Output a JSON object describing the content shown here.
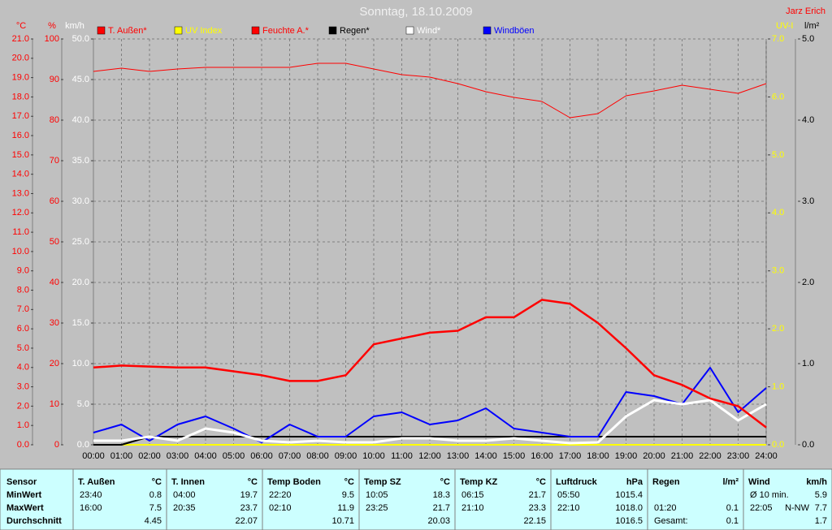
{
  "chart_data": {
    "type": "line",
    "title": "Sonntag, 18.10.2009",
    "author": "Jarz Erich",
    "grid": true,
    "x": [
      0,
      1,
      2,
      3,
      4,
      5,
      6,
      7,
      8,
      9,
      10,
      11,
      12,
      13,
      14,
      15,
      16,
      17,
      18,
      19,
      20,
      21,
      22,
      23,
      24
    ],
    "xlim": [
      0,
      24
    ],
    "xticks": [
      {
        "value": 0,
        "label": "00:00"
      },
      {
        "value": 1,
        "label": "01:00"
      },
      {
        "value": 2,
        "label": "02:00"
      },
      {
        "value": 3,
        "label": "03:00"
      },
      {
        "value": 4,
        "label": "04:00"
      },
      {
        "value": 5,
        "label": "05:00"
      },
      {
        "value": 6,
        "label": "06:00"
      },
      {
        "value": 7,
        "label": "07:00"
      },
      {
        "value": 8,
        "label": "08:00"
      },
      {
        "value": 9,
        "label": "09:00"
      },
      {
        "value": 10,
        "label": "10:00"
      },
      {
        "value": 11,
        "label": "11:00"
      },
      {
        "value": 12,
        "label": "12:00"
      },
      {
        "value": 13,
        "label": "13:00"
      },
      {
        "value": 14,
        "label": "14:00"
      },
      {
        "value": 15,
        "label": "15:00"
      },
      {
        "value": 16,
        "label": "16:00"
      },
      {
        "value": 17,
        "label": "17:00"
      },
      {
        "value": 18,
        "label": "18:00"
      },
      {
        "value": 19,
        "label": "19:00"
      },
      {
        "value": 20,
        "label": "20:00"
      },
      {
        "value": 21,
        "label": "21:00"
      },
      {
        "value": 22,
        "label": "22:00"
      },
      {
        "value": 23,
        "label": "23:00"
      },
      {
        "value": 24,
        "label": "24:00"
      }
    ],
    "axes": [
      {
        "label": "°C",
        "color": "#ff0000",
        "ylim": [
          0,
          21
        ],
        "yticks": [
          {
            "value": 0,
            "label": "0.0"
          },
          {
            "value": 1,
            "label": "1.0"
          },
          {
            "value": 2,
            "label": "2.0"
          },
          {
            "value": 3,
            "label": "3.0"
          },
          {
            "value": 4,
            "label": "4.0"
          },
          {
            "value": 5,
            "label": "5.0"
          },
          {
            "value": 6,
            "label": "6.0"
          },
          {
            "value": 7,
            "label": "7.0"
          },
          {
            "value": 8,
            "label": "8.0"
          },
          {
            "value": 9,
            "label": "9.0"
          },
          {
            "value": 10,
            "label": "10.0"
          },
          {
            "value": 11,
            "label": "11.0"
          },
          {
            "value": 12,
            "label": "12.0"
          },
          {
            "value": 13,
            "label": "13.0"
          },
          {
            "value": 14,
            "label": "14.0"
          },
          {
            "value": 15,
            "label": "15.0"
          },
          {
            "value": 16,
            "label": "16.0"
          },
          {
            "value": 17,
            "label": "17.0"
          },
          {
            "value": 18,
            "label": "18.0"
          },
          {
            "value": 19,
            "label": "19.0"
          },
          {
            "value": 20,
            "label": "20.0"
          },
          {
            "value": 21,
            "label": "21.0"
          }
        ]
      },
      {
        "label": "%",
        "color": "#ff0000",
        "ylim": [
          0,
          100
        ],
        "yticks": [
          0,
          10,
          20,
          30,
          40,
          50,
          60,
          70,
          80,
          90,
          100
        ]
      },
      {
        "label": "km/h",
        "color": "#ffffff",
        "ylim": [
          0,
          50
        ],
        "yticks": [
          {
            "value": 0,
            "label": "0.0"
          },
          {
            "value": 5,
            "label": "5.0"
          },
          {
            "value": 10,
            "label": "10.0"
          },
          {
            "value": 15,
            "label": "15.0"
          },
          {
            "value": 20,
            "label": "20.0"
          },
          {
            "value": 25,
            "label": "25.0"
          },
          {
            "value": 30,
            "label": "30.0"
          },
          {
            "value": 35,
            "label": "35.0"
          },
          {
            "value": 40,
            "label": "40.0"
          },
          {
            "value": 45,
            "label": "45.0"
          },
          {
            "value": 50,
            "label": "50.0"
          }
        ]
      },
      {
        "label": "UV-I",
        "color": "#ffff00",
        "ylim": [
          0,
          7
        ],
        "yticks": [
          {
            "value": 0,
            "label": "0.0"
          },
          {
            "value": 1,
            "label": "1.0"
          },
          {
            "value": 2,
            "label": "2.0"
          },
          {
            "value": 3,
            "label": "3.0"
          },
          {
            "value": 4,
            "label": "4.0"
          },
          {
            "value": 5,
            "label": "5.0"
          },
          {
            "value": 6,
            "label": "6.0"
          },
          {
            "value": 7,
            "label": "7.0"
          }
        ]
      },
      {
        "label": "l/m²",
        "color": "#000000",
        "ylim": [
          0,
          5
        ],
        "yticks": [
          {
            "value": 0,
            "label": "0.0"
          },
          {
            "value": 1,
            "label": "1.0"
          },
          {
            "value": 2,
            "label": "2.0"
          },
          {
            "value": 3,
            "label": "3.0"
          },
          {
            "value": 4,
            "label": "4.0"
          },
          {
            "value": 5,
            "label": "5.0"
          }
        ]
      }
    ],
    "series": [
      {
        "name": "T. Außen*",
        "color": "#ff0000",
        "axis": 0,
        "values": [
          4.0,
          4.1,
          4.05,
          4.0,
          4.0,
          3.8,
          3.6,
          3.3,
          3.3,
          3.6,
          5.2,
          5.5,
          5.8,
          5.9,
          6.6,
          6.6,
          7.5,
          7.3,
          6.3,
          5.0,
          3.6,
          3.1,
          2.4,
          2.0,
          0.9
        ]
      },
      {
        "name": "UV Index",
        "color": "#ffff00",
        "axis": 3,
        "values": [
          0,
          0,
          0,
          0,
          0,
          0,
          0,
          0,
          0,
          0,
          0,
          0,
          0,
          0,
          0,
          0,
          0,
          0,
          0,
          0,
          0,
          0,
          0,
          0,
          0
        ]
      },
      {
        "name": "Feuchte A.*",
        "color": "#ff0000",
        "axis": 1,
        "values": [
          92,
          92.8,
          92,
          92.6,
          93,
          93,
          93,
          93,
          94,
          94,
          92.6,
          91.2,
          90.6,
          89,
          87,
          85.6,
          84.6,
          80.6,
          81.6,
          86,
          87.2,
          88.6,
          87.6,
          86.6,
          89
        ]
      },
      {
        "name": "Regen*",
        "color": "#000000",
        "axis": 4,
        "values": [
          0,
          0,
          0.1,
          0.1,
          0.1,
          0.1,
          0.1,
          0.1,
          0.1,
          0.1,
          0.1,
          0.1,
          0.1,
          0.1,
          0.1,
          0.1,
          0.1,
          0.1,
          0.1,
          0.1,
          0.1,
          0.1,
          0.1,
          0.1,
          0.1
        ]
      },
      {
        "name": "Wind*",
        "color": "#ffffff",
        "axis": 2,
        "values": [
          0.5,
          0.5,
          1.0,
          0.5,
          2.0,
          1.5,
          0.5,
          0.3,
          0.5,
          0.3,
          0.3,
          0.8,
          0.8,
          0.5,
          0.5,
          0.8,
          0.5,
          0.2,
          0.3,
          3.5,
          5.5,
          5.0,
          5.5,
          3.0,
          5.0
        ]
      },
      {
        "name": "Windböen",
        "color": "#0000ff",
        "axis": 2,
        "values": [
          1.5,
          2.5,
          0.5,
          2.5,
          3.5,
          2.0,
          0.3,
          2.5,
          1.0,
          1.0,
          3.5,
          4.0,
          2.5,
          3.0,
          4.5,
          2.0,
          1.5,
          1.0,
          1.0,
          6.5,
          6.0,
          5.0,
          9.5,
          4.0,
          7.0
        ]
      }
    ]
  },
  "table": {
    "row_labels": [
      "Sensor",
      "MinWert",
      "MaxWert",
      "Durchschnitt"
    ],
    "columns": [
      {
        "name": "T. Außen",
        "unit": "°C",
        "cells": [
          {
            "time": "23:40",
            "value": "0.8"
          },
          {
            "time": "16:00",
            "value": "7.5"
          },
          {
            "value": "4.45"
          }
        ]
      },
      {
        "name": "T. Innen",
        "unit": "°C",
        "cells": [
          {
            "time": "04:00",
            "value": "19.7"
          },
          {
            "time": "20:35",
            "value": "23.7"
          },
          {
            "value": "22.07"
          }
        ]
      },
      {
        "name": "Temp Boden",
        "unit": "°C",
        "cells": [
          {
            "time": "22:20",
            "value": "9.5"
          },
          {
            "time": "02:10",
            "value": "11.9"
          },
          {
            "value": "10.71"
          }
        ]
      },
      {
        "name": "Temp SZ",
        "unit": "°C",
        "cells": [
          {
            "time": "10:05",
            "value": "18.3"
          },
          {
            "time": "23:25",
            "value": "21.7"
          },
          {
            "value": "20.03"
          }
        ]
      },
      {
        "name": "Temp KZ",
        "unit": "°C",
        "cells": [
          {
            "time": "06:15",
            "value": "21.7"
          },
          {
            "time": "21:10",
            "value": "23.3"
          },
          {
            "value": "22.15"
          }
        ]
      },
      {
        "name": "Luftdruck",
        "unit": "hPa",
        "cells": [
          {
            "time": "05:50",
            "value": "1015.4"
          },
          {
            "time": "22:10",
            "value": "1018.0"
          },
          {
            "value": "1016.5"
          }
        ]
      },
      {
        "name": "Regen",
        "unit": "l/m²",
        "cells": [
          null,
          {
            "time": "01:20",
            "value": "0.1"
          },
          {
            "time": "Gesamt:",
            "value": "0.1"
          }
        ]
      },
      {
        "name": "Wind",
        "unit": "km/h",
        "cells": [
          {
            "time": "Ø 10 min.",
            "value": "5.9"
          },
          {
            "time": "22:05",
            "extra": "N-NW",
            "value": "7.7"
          },
          {
            "value": "1.7"
          }
        ]
      }
    ]
  }
}
